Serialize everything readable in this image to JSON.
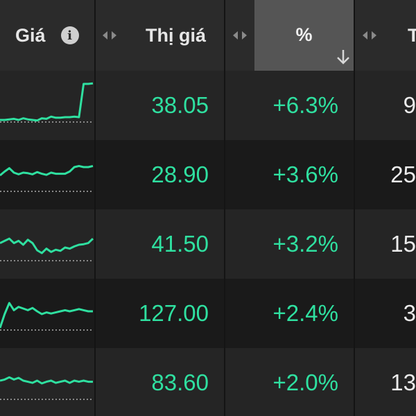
{
  "header": {
    "col_gia": "Giá",
    "col_thi_gia": "Thị giá",
    "col_pct": "%",
    "col_next": "T"
  },
  "colors": {
    "up_green": "#2fe0a0",
    "header_bg": "#2b2b2b",
    "active_header_bg": "#555555"
  },
  "rows": [
    {
      "price": "38.05",
      "change": "+6.3%",
      "vol": "9",
      "spark": [
        0.3,
        0.3,
        0.31,
        0.32,
        0.3,
        0.33,
        0.31,
        0.3,
        0.29,
        0.33,
        0.32,
        0.36,
        0.34,
        0.34,
        0.35,
        0.35,
        0.36,
        0.35,
        0.95,
        0.95,
        0.96
      ]
    },
    {
      "price": "28.90",
      "change": "+3.6%",
      "vol": "25",
      "spark": [
        0.55,
        0.62,
        0.68,
        0.6,
        0.57,
        0.6,
        0.59,
        0.57,
        0.61,
        0.58,
        0.56,
        0.6,
        0.58,
        0.58,
        0.58,
        0.62,
        0.7,
        0.72,
        0.7,
        0.7,
        0.72
      ]
    },
    {
      "price": "41.50",
      "change": "+3.2%",
      "vol": "15",
      "spark": [
        0.58,
        0.62,
        0.66,
        0.58,
        0.62,
        0.55,
        0.64,
        0.58,
        0.45,
        0.4,
        0.48,
        0.42,
        0.46,
        0.44,
        0.5,
        0.48,
        0.52,
        0.55,
        0.56,
        0.58,
        0.66
      ]
    },
    {
      "price": "127.00",
      "change": "+2.4%",
      "vol": "3",
      "spark": [
        0.3,
        0.55,
        0.75,
        0.62,
        0.68,
        0.65,
        0.62,
        0.66,
        0.6,
        0.55,
        0.58,
        0.56,
        0.58,
        0.6,
        0.62,
        0.6,
        0.62,
        0.64,
        0.62,
        0.6,
        0.6
      ]
    },
    {
      "price": "83.60",
      "change": "+2.0%",
      "vol": "13",
      "spark": [
        0.6,
        0.62,
        0.66,
        0.62,
        0.65,
        0.6,
        0.58,
        0.56,
        0.6,
        0.55,
        0.58,
        0.6,
        0.56,
        0.58,
        0.6,
        0.56,
        0.6,
        0.58,
        0.6,
        0.58,
        0.58
      ]
    }
  ]
}
